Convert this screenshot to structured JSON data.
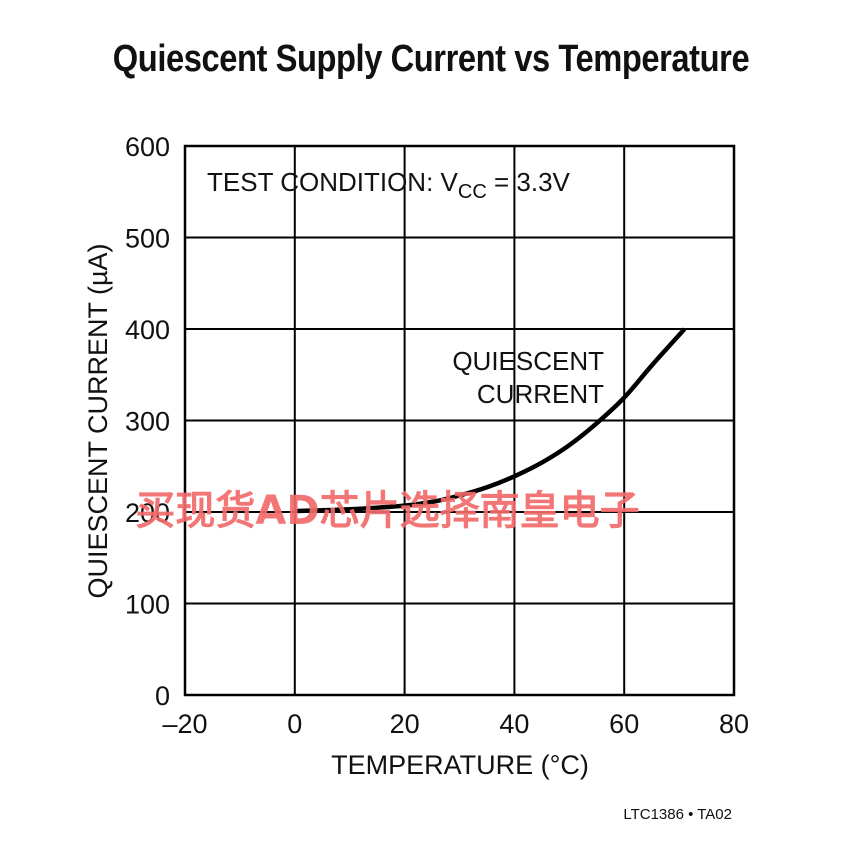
{
  "chart_data": {
    "type": "line",
    "title": "Quiescent Supply Current vs Temperature",
    "xlabel": "TEMPERATURE (°C)",
    "ylabel": "QUIESCENT CURRENT (µA)",
    "xlim": [
      -20,
      80
    ],
    "ylim": [
      0,
      600
    ],
    "xticks": [
      "–20",
      "0",
      "20",
      "40",
      "60",
      "80"
    ],
    "yticks": [
      "0",
      "100",
      "200",
      "300",
      "400",
      "500",
      "600"
    ],
    "grid": true,
    "annotation_test_prefix": "TEST CONDITION: V",
    "annotation_test_sub": "CC",
    "annotation_test_suffix": " = 3.3V",
    "series": [
      {
        "name": "QUIESCENT CURRENT",
        "label_lines": [
          "QUIESCENT",
          "CURRENT"
        ],
        "x": [
          0,
          10,
          20,
          25,
          30,
          35,
          40,
          45,
          50,
          55,
          60,
          65,
          71
        ],
        "y": [
          201,
          203,
          207,
          211,
          218,
          227,
          239,
          254,
          273,
          297,
          325,
          360,
          400
        ]
      }
    ]
  },
  "watermark": "买现货AD芯片选择南皇电子",
  "footer": "LTC1386 • TA02",
  "colors": {
    "line": "#000000",
    "grid": "#000000",
    "watermark": "#f26b6b"
  }
}
